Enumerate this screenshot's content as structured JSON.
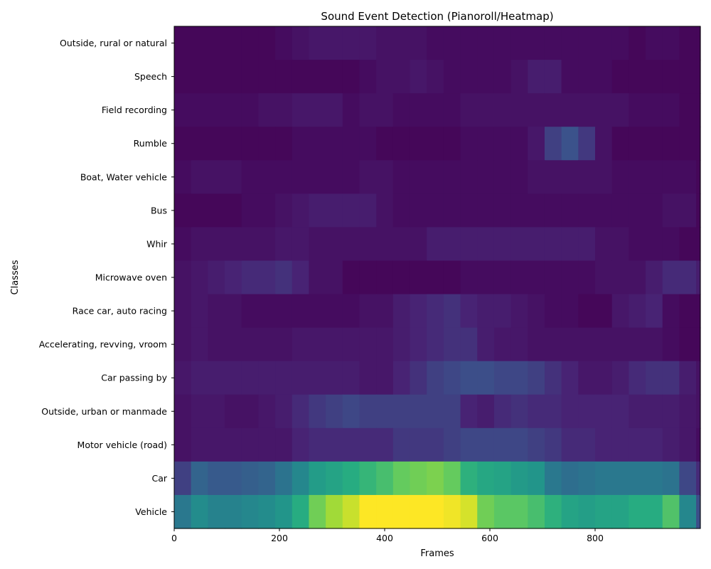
{
  "chart_data": {
    "type": "heatmap",
    "title": "Sound Event Detection (Pianoroll/Heatmap)",
    "xlabel": "Frames",
    "ylabel": "Classes",
    "colormap": "viridis",
    "value_range": [
      0,
      1
    ],
    "x_range": [
      0,
      1000
    ],
    "x_ticks": [
      0,
      200,
      400,
      600,
      800
    ],
    "segment_frames": 32,
    "classes": [
      "Outside, rural or natural",
      "Speech",
      "Field recording",
      "Rumble",
      "Boat, Water vehicle",
      "Bus",
      "Whir",
      "Microwave oven",
      "Race car, auto racing",
      "Accelerating, revving, vroom",
      "Car passing by",
      "Outside, urban or manmade",
      "Motor vehicle (road)",
      "Car",
      "Vehicle"
    ],
    "values": [
      [
        0.02,
        0.02,
        0.02,
        0.02,
        0.02,
        0.02,
        0.04,
        0.06,
        0.08,
        0.08,
        0.08,
        0.08,
        0.06,
        0.06,
        0.06,
        0.04,
        0.04,
        0.04,
        0.04,
        0.04,
        0.04,
        0.04,
        0.04,
        0.04,
        0.04,
        0.04,
        0.04,
        0.02,
        0.04,
        0.04,
        0.02,
        0.02
      ],
      [
        0.02,
        0.02,
        0.02,
        0.02,
        0.02,
        0.02,
        0.02,
        0.02,
        0.02,
        0.02,
        0.02,
        0.04,
        0.06,
        0.06,
        0.08,
        0.06,
        0.04,
        0.04,
        0.04,
        0.04,
        0.06,
        0.1,
        0.1,
        0.04,
        0.04,
        0.04,
        0.02,
        0.02,
        0.02,
        0.02,
        0.02,
        0.02
      ],
      [
        0.04,
        0.04,
        0.04,
        0.04,
        0.04,
        0.06,
        0.06,
        0.08,
        0.08,
        0.08,
        0.04,
        0.06,
        0.06,
        0.04,
        0.04,
        0.04,
        0.04,
        0.06,
        0.06,
        0.06,
        0.06,
        0.06,
        0.06,
        0.06,
        0.06,
        0.06,
        0.06,
        0.04,
        0.04,
        0.04,
        0.02,
        0.02
      ],
      [
        0.02,
        0.02,
        0.02,
        0.02,
        0.02,
        0.02,
        0.02,
        0.04,
        0.04,
        0.04,
        0.04,
        0.04,
        0.02,
        0.02,
        0.02,
        0.02,
        0.02,
        0.04,
        0.04,
        0.04,
        0.04,
        0.08,
        0.2,
        0.25,
        0.18,
        0.06,
        0.02,
        0.02,
        0.02,
        0.02,
        0.02,
        0.02
      ],
      [
        0.04,
        0.06,
        0.06,
        0.06,
        0.04,
        0.04,
        0.04,
        0.04,
        0.04,
        0.04,
        0.04,
        0.06,
        0.06,
        0.04,
        0.04,
        0.04,
        0.04,
        0.04,
        0.04,
        0.04,
        0.04,
        0.06,
        0.06,
        0.06,
        0.06,
        0.06,
        0.04,
        0.04,
        0.04,
        0.04,
        0.04,
        0.02
      ],
      [
        0.02,
        0.02,
        0.02,
        0.02,
        0.04,
        0.04,
        0.06,
        0.08,
        0.1,
        0.1,
        0.1,
        0.1,
        0.06,
        0.04,
        0.04,
        0.04,
        0.04,
        0.04,
        0.04,
        0.04,
        0.04,
        0.04,
        0.04,
        0.04,
        0.04,
        0.04,
        0.04,
        0.04,
        0.04,
        0.06,
        0.06,
        0.02
      ],
      [
        0.04,
        0.06,
        0.06,
        0.06,
        0.06,
        0.06,
        0.08,
        0.08,
        0.06,
        0.06,
        0.06,
        0.06,
        0.06,
        0.06,
        0.06,
        0.1,
        0.1,
        0.1,
        0.1,
        0.1,
        0.1,
        0.1,
        0.1,
        0.1,
        0.1,
        0.06,
        0.06,
        0.04,
        0.04,
        0.04,
        0.02,
        0.02
      ],
      [
        0.06,
        0.08,
        0.1,
        0.12,
        0.14,
        0.14,
        0.16,
        0.12,
        0.06,
        0.06,
        0.02,
        0.02,
        0.02,
        0.02,
        0.02,
        0.02,
        0.02,
        0.04,
        0.04,
        0.04,
        0.04,
        0.04,
        0.04,
        0.04,
        0.04,
        0.06,
        0.06,
        0.06,
        0.1,
        0.14,
        0.14,
        0.1
      ],
      [
        0.06,
        0.08,
        0.06,
        0.06,
        0.04,
        0.04,
        0.04,
        0.04,
        0.04,
        0.04,
        0.04,
        0.06,
        0.06,
        0.1,
        0.12,
        0.14,
        0.16,
        0.12,
        0.1,
        0.1,
        0.08,
        0.06,
        0.04,
        0.04,
        0.02,
        0.02,
        0.08,
        0.1,
        0.12,
        0.04,
        0.02,
        0.02
      ],
      [
        0.06,
        0.08,
        0.06,
        0.06,
        0.06,
        0.06,
        0.06,
        0.08,
        0.08,
        0.08,
        0.08,
        0.08,
        0.08,
        0.1,
        0.12,
        0.14,
        0.16,
        0.16,
        0.1,
        0.08,
        0.08,
        0.06,
        0.06,
        0.06,
        0.06,
        0.06,
        0.06,
        0.06,
        0.06,
        0.04,
        0.02,
        0.02
      ],
      [
        0.08,
        0.1,
        0.1,
        0.1,
        0.1,
        0.1,
        0.1,
        0.1,
        0.1,
        0.1,
        0.1,
        0.08,
        0.08,
        0.12,
        0.16,
        0.2,
        0.22,
        0.24,
        0.24,
        0.22,
        0.22,
        0.2,
        0.16,
        0.12,
        0.08,
        0.08,
        0.1,
        0.14,
        0.16,
        0.16,
        0.1,
        0.06
      ],
      [
        0.06,
        0.08,
        0.08,
        0.06,
        0.06,
        0.08,
        0.1,
        0.14,
        0.18,
        0.2,
        0.22,
        0.2,
        0.2,
        0.2,
        0.2,
        0.2,
        0.2,
        0.12,
        0.1,
        0.14,
        0.16,
        0.14,
        0.14,
        0.12,
        0.12,
        0.12,
        0.12,
        0.1,
        0.1,
        0.1,
        0.08,
        0.06
      ],
      [
        0.06,
        0.08,
        0.08,
        0.08,
        0.08,
        0.08,
        0.08,
        0.12,
        0.14,
        0.14,
        0.14,
        0.14,
        0.14,
        0.18,
        0.18,
        0.18,
        0.2,
        0.22,
        0.22,
        0.22,
        0.22,
        0.2,
        0.18,
        0.14,
        0.14,
        0.12,
        0.12,
        0.12,
        0.12,
        0.1,
        0.08,
        0.04
      ],
      [
        0.2,
        0.32,
        0.28,
        0.28,
        0.3,
        0.32,
        0.38,
        0.46,
        0.55,
        0.58,
        0.62,
        0.66,
        0.7,
        0.76,
        0.78,
        0.8,
        0.76,
        0.64,
        0.6,
        0.58,
        0.54,
        0.52,
        0.4,
        0.36,
        0.38,
        0.4,
        0.4,
        0.4,
        0.4,
        0.38,
        0.22,
        0.14
      ],
      [
        0.4,
        0.48,
        0.44,
        0.44,
        0.46,
        0.48,
        0.52,
        0.62,
        0.78,
        0.86,
        0.92,
        1.0,
        1.0,
        1.0,
        1.0,
        1.0,
        0.98,
        0.94,
        0.78,
        0.74,
        0.74,
        0.7,
        0.64,
        0.58,
        0.56,
        0.58,
        0.58,
        0.62,
        0.62,
        0.72,
        0.46,
        0.24
      ]
    ]
  }
}
